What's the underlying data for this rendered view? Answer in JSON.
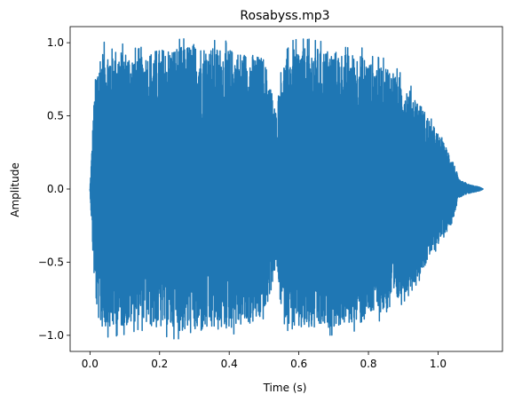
{
  "chart_data": {
    "type": "line",
    "title": "Rosabyss.mp3",
    "xlabel": "Time (s)",
    "ylabel": "Amplitude",
    "xlim": [
      -0.057,
      1.185
    ],
    "ylim": [
      -1.11,
      1.11
    ],
    "x_ticks": [
      0.0,
      0.2,
      0.4,
      0.6,
      0.8,
      1.0
    ],
    "x_tick_labels": [
      "0.0",
      "0.2",
      "0.4",
      "0.6",
      "0.8",
      "1.0"
    ],
    "y_ticks": [
      -1.0,
      -0.5,
      0.0,
      0.5,
      1.0
    ],
    "y_tick_labels": [
      "−1.0",
      "−0.5",
      "0.0",
      "0.5",
      "1.0"
    ],
    "grid": false,
    "series": [
      {
        "color": "#1f77b4",
        "duration": 1.13,
        "envelope": [
          [
            0.0,
            0.0
          ],
          [
            0.005,
            0.25
          ],
          [
            0.01,
            0.55
          ],
          [
            0.02,
            0.85
          ],
          [
            0.03,
            0.95
          ],
          [
            0.06,
            0.97
          ],
          [
            0.1,
            0.95
          ],
          [
            0.14,
            0.92
          ],
          [
            0.18,
            0.95
          ],
          [
            0.22,
            0.97
          ],
          [
            0.26,
            0.98
          ],
          [
            0.3,
            1.0
          ],
          [
            0.34,
            0.98
          ],
          [
            0.38,
            0.97
          ],
          [
            0.42,
            0.95
          ],
          [
            0.46,
            0.93
          ],
          [
            0.5,
            0.9
          ],
          [
            0.52,
            0.7
          ],
          [
            0.535,
            0.52
          ],
          [
            0.55,
            0.85
          ],
          [
            0.58,
            0.97
          ],
          [
            0.62,
            0.98
          ],
          [
            0.66,
            0.97
          ],
          [
            0.7,
            0.95
          ],
          [
            0.74,
            0.93
          ],
          [
            0.78,
            0.93
          ],
          [
            0.8,
            0.88
          ],
          [
            0.83,
            0.86
          ],
          [
            0.86,
            0.85
          ],
          [
            0.9,
            0.74
          ],
          [
            0.94,
            0.62
          ],
          [
            0.97,
            0.5
          ],
          [
            1.0,
            0.38
          ],
          [
            1.02,
            0.3
          ],
          [
            1.04,
            0.22
          ],
          [
            1.06,
            0.06
          ],
          [
            1.09,
            0.03
          ],
          [
            1.12,
            0.012
          ],
          [
            1.13,
            0.0
          ]
        ]
      }
    ]
  }
}
